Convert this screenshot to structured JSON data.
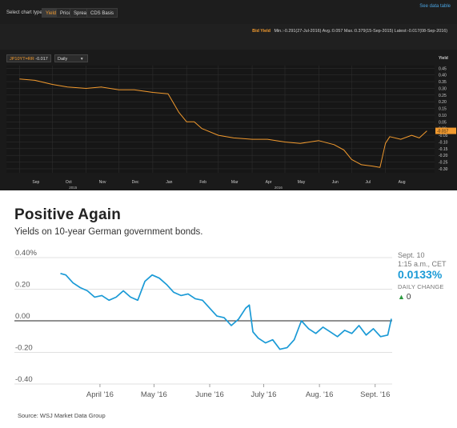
{
  "terminal": {
    "toolbar": {
      "label": "Select chart type",
      "tabs": [
        "Yield",
        "Price",
        "Spread",
        "CDS Basis"
      ],
      "active_tab": "Yield",
      "see_data_table": "See data table"
    },
    "stats": {
      "bid_yield": "Bid Yield",
      "summary": "Min.:-0.291(27-Jul-2016)  Avg.:0.057  Max.:0.379(15-Sep-2015)  Latest:-0.017(08-Sep-2016)"
    },
    "symbol_select": {
      "symbol": "JP10YT=RR",
      "value": "-0.017"
    },
    "interval_select": "Daily",
    "latest_tag": "-0.017",
    "colors": {
      "line": "#f29a2e",
      "background": "#1a1a1a",
      "grid": "#2d2d2d",
      "latest_tag_bg": "#f29a2e"
    }
  },
  "wsj": {
    "title": "Positive Again",
    "subtitle": "Yields on 10-year German government bonds.",
    "source": "Source: WSJ Market Data Group",
    "side": {
      "date": "Sept. 10",
      "time": "1:15 a.m., CET",
      "value": "0.0133%",
      "change_label": "DAILY CHANGE",
      "change_value": "0"
    },
    "colors": {
      "line": "#1a9ad6",
      "zero_line": "#222222",
      "grid": "#d6d6d6",
      "accent": "#1a9ad6",
      "up": "#2a9a3f"
    }
  },
  "chart_data": [
    {
      "type": "line",
      "title": "",
      "ylabel": "Yield",
      "x_ticks": [
        "Sep",
        "Oct",
        "Nov",
        "Dec",
        "Jan",
        "Feb",
        "Mar",
        "Apr",
        "May",
        "Jun",
        "Jul",
        "Aug"
      ],
      "year_labels": [
        {
          "label": "2015",
          "after": "Oct"
        },
        {
          "label": "2016",
          "after": "Apr"
        }
      ],
      "y_ticks": [
        "0.45",
        "0.40",
        "0.35",
        "0.30",
        "0.25",
        "0.20",
        "0.15",
        "0.10",
        "0.05",
        "0.00",
        "-0.05",
        "-0.10",
        "-0.15",
        "-0.20",
        "-0.25",
        "-0.30"
      ],
      "ylim": [
        -0.33,
        0.47
      ],
      "grid": true,
      "series": [
        {
          "x": [
            "2015-09-01",
            "2015-09-15",
            "2015-10-01",
            "2015-10-15",
            "2015-11-01",
            "2015-11-15",
            "2015-12-01",
            "2015-12-15",
            "2016-01-01",
            "2016-01-15",
            "2016-01-25",
            "2016-02-01",
            "2016-02-08",
            "2016-02-15",
            "2016-03-01",
            "2016-03-15",
            "2016-04-01",
            "2016-04-15",
            "2016-05-01",
            "2016-05-15",
            "2016-06-01",
            "2016-06-15",
            "2016-06-24",
            "2016-07-01",
            "2016-07-10",
            "2016-07-20",
            "2016-07-27",
            "2016-08-01",
            "2016-08-05",
            "2016-08-15",
            "2016-08-25",
            "2016-09-01",
            "2016-09-08"
          ],
          "y": [
            0.37,
            0.36,
            0.33,
            0.31,
            0.3,
            0.31,
            0.29,
            0.29,
            0.27,
            0.26,
            0.12,
            0.05,
            0.05,
            0.0,
            -0.05,
            -0.07,
            -0.08,
            -0.08,
            -0.1,
            -0.11,
            -0.09,
            -0.12,
            -0.16,
            -0.23,
            -0.27,
            -0.28,
            -0.29,
            -0.11,
            -0.06,
            -0.08,
            -0.05,
            -0.07,
            -0.017
          ]
        }
      ]
    },
    {
      "type": "line",
      "title": "Positive Again",
      "subtitle": "Yields on 10-year German government bonds.",
      "x_ticks": [
        "April '16",
        "May '16",
        "June '16",
        "July '16",
        "Aug. '16",
        "Sept. '16"
      ],
      "y_ticks": [
        "0.40%",
        "0.20",
        "0.00",
        "-0.20",
        "-0.40"
      ],
      "ylim": [
        -0.4,
        0.4
      ],
      "grid": true,
      "series": [
        {
          "x": [
            "2016-03-10",
            "2016-03-13",
            "2016-03-17",
            "2016-03-21",
            "2016-03-25",
            "2016-03-29",
            "2016-04-02",
            "2016-04-06",
            "2016-04-10",
            "2016-04-14",
            "2016-04-18",
            "2016-04-22",
            "2016-04-26",
            "2016-04-30",
            "2016-05-04",
            "2016-05-08",
            "2016-05-12",
            "2016-05-16",
            "2016-05-20",
            "2016-05-24",
            "2016-05-28",
            "2016-06-01",
            "2016-06-05",
            "2016-06-09",
            "2016-06-13",
            "2016-06-17",
            "2016-06-21",
            "2016-06-23",
            "2016-06-25",
            "2016-06-28",
            "2016-07-02",
            "2016-07-06",
            "2016-07-10",
            "2016-07-14",
            "2016-07-18",
            "2016-07-22",
            "2016-07-26",
            "2016-07-30",
            "2016-08-03",
            "2016-08-07",
            "2016-08-11",
            "2016-08-15",
            "2016-08-19",
            "2016-08-23",
            "2016-08-27",
            "2016-08-31",
            "2016-09-04",
            "2016-09-08",
            "2016-09-10"
          ],
          "y": [
            0.3,
            0.29,
            0.24,
            0.21,
            0.19,
            0.15,
            0.16,
            0.13,
            0.15,
            0.19,
            0.15,
            0.13,
            0.25,
            0.29,
            0.27,
            0.23,
            0.18,
            0.16,
            0.17,
            0.14,
            0.13,
            0.08,
            0.03,
            0.02,
            -0.03,
            0.01,
            0.08,
            0.1,
            -0.07,
            -0.11,
            -0.14,
            -0.12,
            -0.18,
            -0.17,
            -0.12,
            0.0,
            -0.05,
            -0.08,
            -0.04,
            -0.07,
            -0.1,
            -0.06,
            -0.08,
            -0.03,
            -0.09,
            -0.05,
            -0.1,
            -0.09,
            0.0133
          ]
        }
      ]
    }
  ]
}
